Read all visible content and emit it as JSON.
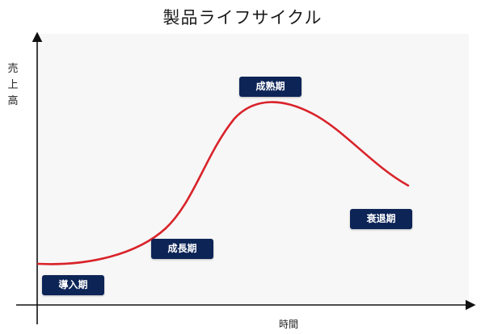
{
  "title": "製品ライフサイクル",
  "axes": {
    "y_label": [
      "売",
      "上",
      "高"
    ],
    "x_label": "時間"
  },
  "stages": [
    {
      "id": "intro",
      "label": "導入期"
    },
    {
      "id": "growth",
      "label": "成長期"
    },
    {
      "id": "maturity",
      "label": "成熟期"
    },
    {
      "id": "decline",
      "label": "衰退期"
    }
  ],
  "colors": {
    "curve": "#d9232a",
    "stage_box": "#0d2457",
    "axis": "#111111",
    "panel": "#f7f7f7"
  }
}
